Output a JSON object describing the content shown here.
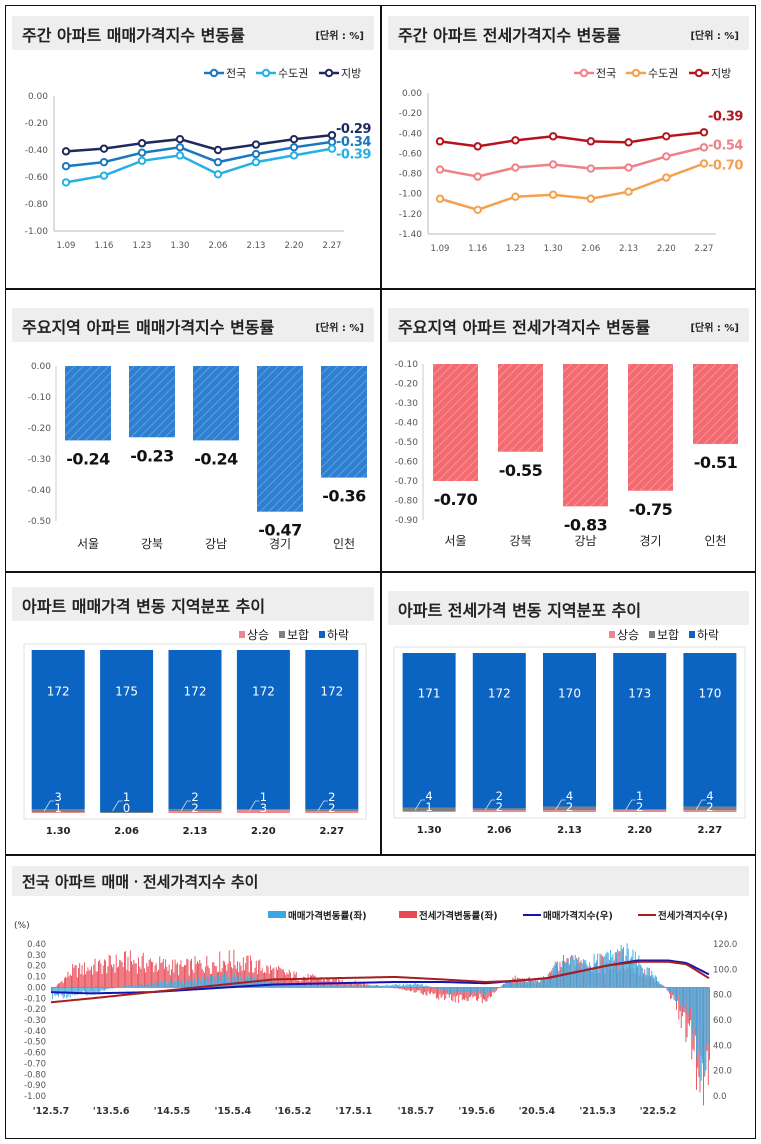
{
  "colors": {
    "sale_national": "#1a78c2",
    "sale_capital": "#26b0e6",
    "sale_local": "#1f2a5c",
    "jeonse_national": "#f07f86",
    "jeonse_capital": "#f5a04c",
    "jeonse_local": "#b4141e",
    "bar_blue": "#2f7fd1",
    "bar_red": "#f36b70",
    "dist_up": "#f4828a",
    "dist_flat": "#808080",
    "dist_down": "#0b63c2",
    "combo_sale_bar": "#3aa7de",
    "combo_jeonse_bar": "#e84a55",
    "combo_sale_idx": "#1414b4",
    "combo_jeonse_idx": "#a61e1e"
  },
  "panels": {
    "p1": {
      "title": "주간 아파트 매매가격지수 변동률",
      "unit": "[단위 : %]"
    },
    "p2": {
      "title": "주간 아파트 전세가격지수 변동률",
      "unit": "[단위 : %]"
    },
    "p3": {
      "title": "주요지역 아파트 매매가격지수 변동률",
      "unit": "[단위 : %]"
    },
    "p4": {
      "title": "주요지역 아파트 전세가격지수 변동률",
      "unit": "[단위 : %]"
    },
    "p5": {
      "title": "아파트 매매가격 변동 지역분포 추이"
    },
    "p6": {
      "title": "아파트 전세가격 변동 지역분포 추이"
    },
    "p7": {
      "title": "전국 아파트 매매ㆍ전세가격지수 추이",
      "yunit": "(%)"
    }
  },
  "chart_data": [
    {
      "type": "line",
      "title": "주간 아파트 매매가격지수 변동률",
      "categories": [
        "1.09",
        "1.16",
        "1.23",
        "1.30",
        "2.06",
        "2.13",
        "2.20",
        "2.27"
      ],
      "ylim": [
        -1.0,
        0.0
      ],
      "yticks": [
        "0.00",
        "-0.20",
        "-0.40",
        "-0.60",
        "-0.80",
        "-1.00"
      ],
      "series": [
        {
          "name": "전국",
          "values": [
            -0.52,
            -0.49,
            -0.42,
            -0.38,
            -0.49,
            -0.43,
            -0.38,
            -0.34
          ],
          "end_label": "-0.34"
        },
        {
          "name": "수도권",
          "values": [
            -0.64,
            -0.59,
            -0.48,
            -0.44,
            -0.58,
            -0.49,
            -0.44,
            -0.39
          ],
          "end_label": "-0.39"
        },
        {
          "name": "지방",
          "values": [
            -0.41,
            -0.39,
            -0.35,
            -0.32,
            -0.4,
            -0.36,
            -0.32,
            -0.29
          ],
          "end_label": "-0.29"
        }
      ]
    },
    {
      "type": "line",
      "title": "주간 아파트 전세가격지수 변동률",
      "categories": [
        "1.09",
        "1.16",
        "1.23",
        "1.30",
        "2.06",
        "2.13",
        "2.20",
        "2.27"
      ],
      "ylim": [
        -1.4,
        0.0
      ],
      "yticks": [
        "0.00",
        "-0.20",
        "-0.40",
        "-0.60",
        "-0.80",
        "-1.00",
        "-1.20",
        "-1.40"
      ],
      "series": [
        {
          "name": "전국",
          "values": [
            -0.76,
            -0.83,
            -0.74,
            -0.71,
            -0.75,
            -0.74,
            -0.63,
            -0.54
          ],
          "end_label": "-0.54"
        },
        {
          "name": "수도권",
          "values": [
            -1.05,
            -1.16,
            -1.03,
            -1.01,
            -1.05,
            -0.98,
            -0.84,
            -0.7
          ],
          "end_label": "-0.70"
        },
        {
          "name": "지방",
          "values": [
            -0.48,
            -0.53,
            -0.47,
            -0.43,
            -0.48,
            -0.49,
            -0.43,
            -0.39
          ],
          "end_label": "-0.39"
        }
      ]
    },
    {
      "type": "bar",
      "title": "주요지역 아파트 매매가격지수 변동률",
      "categories": [
        "서울",
        "강북",
        "강남",
        "경기",
        "인천"
      ],
      "values": [
        -0.24,
        -0.23,
        -0.24,
        -0.47,
        -0.36
      ],
      "labels": [
        "-0.24",
        "-0.23",
        "-0.24",
        "-0.47",
        "-0.36"
      ],
      "ylim": [
        -0.5,
        0.0
      ],
      "yticks": [
        "0.00",
        "-0.10",
        "-0.20",
        "-0.30",
        "-0.40",
        "-0.50"
      ]
    },
    {
      "type": "bar",
      "title": "주요지역 아파트 전세가격지수 변동률",
      "categories": [
        "서울",
        "강북",
        "강남",
        "경기",
        "인천"
      ],
      "values": [
        -0.7,
        -0.55,
        -0.83,
        -0.75,
        -0.51
      ],
      "labels": [
        "-0.70",
        "-0.55",
        "-0.83",
        "-0.75",
        "-0.51"
      ],
      "ylim": [
        -0.9,
        -0.1
      ],
      "yticks": [
        "-0.10",
        "-0.20",
        "-0.30",
        "-0.40",
        "-0.50",
        "-0.60",
        "-0.70",
        "-0.80",
        "-0.90"
      ]
    },
    {
      "type": "bar",
      "title": "아파트 매매가격 변동 지역분포 추이",
      "categories": [
        "1.30",
        "2.06",
        "2.13",
        "2.20",
        "2.27"
      ],
      "series": [
        {
          "name": "상승",
          "values": [
            1,
            0,
            2,
            3,
            2
          ]
        },
        {
          "name": "보합",
          "values": [
            3,
            1,
            2,
            1,
            2
          ]
        },
        {
          "name": "하락",
          "values": [
            172,
            175,
            172,
            172,
            172
          ]
        }
      ],
      "stacked": true
    },
    {
      "type": "bar",
      "title": "아파트 전세가격 변동 지역분포 추이",
      "categories": [
        "1.30",
        "2.06",
        "2.13",
        "2.20",
        "2.27"
      ],
      "series": [
        {
          "name": "상승",
          "values": [
            1,
            2,
            2,
            2,
            2
          ]
        },
        {
          "name": "보합",
          "values": [
            4,
            2,
            4,
            1,
            4
          ]
        },
        {
          "name": "하락",
          "values": [
            171,
            172,
            170,
            173,
            170
          ]
        }
      ],
      "stacked": true
    },
    {
      "type": "bar",
      "title": "전국 아파트 매매ㆍ전세가격지수 추이",
      "x_ticks": [
        "'12.5.7",
        "'13.5.6",
        "'14.5.5",
        "'15.5.4",
        "'16.5.2",
        "'17.5.1",
        "'18.5.7",
        "'19.5.6",
        "'20.5.4",
        "'21.5.3",
        "'22.5.2"
      ],
      "ylim_left": [
        -1.0,
        0.4
      ],
      "yticks_left": [
        "0.40",
        "0.30",
        "0.20",
        "0.10",
        "0.00",
        "-0.10",
        "-0.20",
        "-0.30",
        "-0.40",
        "-0.50",
        "-0.60",
        "-0.70",
        "-0.80",
        "-0.90",
        "-1.00"
      ],
      "ylim_right": [
        0.0,
        120.0
      ],
      "yticks_right": [
        "120.0",
        "100.0",
        "80.0",
        "60.0",
        "40.0",
        "20.0",
        "0.0"
      ],
      "series": [
        {
          "name": "매매가격변동률(좌)",
          "axis": "left",
          "kind": "bar",
          "keypoints": [
            [
              2012.35,
              -0.08
            ],
            [
              2013.0,
              -0.05
            ],
            [
              2013.6,
              0.02
            ],
            [
              2014.5,
              0.06
            ],
            [
              2015.4,
              0.1
            ],
            [
              2016.4,
              0.02
            ],
            [
              2017.3,
              0.01
            ],
            [
              2018.4,
              0.03
            ],
            [
              2018.9,
              -0.04
            ],
            [
              2019.5,
              -0.05
            ],
            [
              2019.9,
              0.05
            ],
            [
              2020.4,
              0.05
            ],
            [
              2020.7,
              0.2
            ],
            [
              2021.3,
              0.22
            ],
            [
              2021.8,
              0.3
            ],
            [
              2022.2,
              0.12
            ],
            [
              2022.45,
              0.0
            ],
            [
              2022.7,
              -0.15
            ],
            [
              2022.9,
              -0.4
            ],
            [
              2023.1,
              -0.75
            ],
            [
              2023.17,
              -0.34
            ]
          ]
        },
        {
          "name": "전세가격변동률(좌)",
          "axis": "left",
          "kind": "bar",
          "keypoints": [
            [
              2012.35,
              -0.03
            ],
            [
              2012.7,
              0.15
            ],
            [
              2013.6,
              0.24
            ],
            [
              2014.5,
              0.18
            ],
            [
              2015.3,
              0.25
            ],
            [
              2016.4,
              0.1
            ],
            [
              2017.3,
              0.05
            ],
            [
              2018.4,
              -0.04
            ],
            [
              2018.9,
              -0.1
            ],
            [
              2019.5,
              -0.1
            ],
            [
              2019.9,
              0.08
            ],
            [
              2020.4,
              0.06
            ],
            [
              2020.8,
              0.22
            ],
            [
              2021.3,
              0.2
            ],
            [
              2021.8,
              0.25
            ],
            [
              2022.2,
              0.08
            ],
            [
              2022.45,
              0.0
            ],
            [
              2022.7,
              -0.25
            ],
            [
              2022.9,
              -0.55
            ],
            [
              2023.08,
              -0.95
            ],
            [
              2023.17,
              -0.54
            ]
          ]
        },
        {
          "name": "매매가격지수(우)",
          "axis": "right",
          "kind": "line",
          "keypoints": [
            [
              2012.35,
              82
            ],
            [
              2013.0,
              81
            ],
            [
              2014.0,
              82
            ],
            [
              2015.0,
              85
            ],
            [
              2016.0,
              88
            ],
            [
              2017.0,
              89
            ],
            [
              2018.0,
              90
            ],
            [
              2018.8,
              90
            ],
            [
              2019.5,
              89
            ],
            [
              2020.0,
              91
            ],
            [
              2020.5,
              93
            ],
            [
              2021.0,
              98
            ],
            [
              2021.5,
              103
            ],
            [
              2022.0,
              107
            ],
            [
              2022.5,
              107
            ],
            [
              2022.8,
              105
            ],
            [
              2023.17,
              96
            ]
          ]
        },
        {
          "name": "전세가격지수(우)",
          "axis": "right",
          "kind": "line",
          "keypoints": [
            [
              2012.35,
              74
            ],
            [
              2013.0,
              77
            ],
            [
              2014.0,
              82
            ],
            [
              2015.0,
              87
            ],
            [
              2016.0,
              92
            ],
            [
              2017.0,
              93
            ],
            [
              2018.0,
              94
            ],
            [
              2018.8,
              92
            ],
            [
              2019.5,
              90
            ],
            [
              2020.0,
              91
            ],
            [
              2020.5,
              93
            ],
            [
              2021.0,
              98
            ],
            [
              2021.5,
              103
            ],
            [
              2022.0,
              106
            ],
            [
              2022.5,
              106
            ],
            [
              2022.8,
              104
            ],
            [
              2023.17,
              93
            ]
          ]
        }
      ]
    }
  ]
}
